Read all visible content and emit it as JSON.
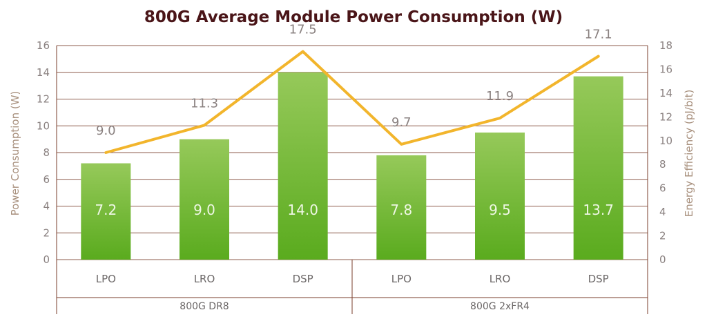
{
  "chart_data": {
    "type": "bar+line",
    "title": "800G Average Module Power Consumption (W)",
    "ylabel_left": "Power Consumption (W)",
    "ylabel_right": "Energy Efficiency (pJ/bit)",
    "ylim_left": [
      0,
      16
    ],
    "ylim_right": [
      0,
      18
    ],
    "yticks_left": [
      "0",
      "2",
      "4",
      "6",
      "8",
      "10",
      "12",
      "14",
      "16"
    ],
    "yticks_right": [
      "0",
      "2",
      "4",
      "6",
      "8",
      "10",
      "12",
      "14",
      "16",
      "18"
    ],
    "categories": [
      "LPO",
      "LRO",
      "DSP",
      "LPO",
      "LRO",
      "DSP"
    ],
    "groups": [
      {
        "name": "800G DR8",
        "span": 3
      },
      {
        "name": "800G 2xFR4",
        "span": 3
      }
    ],
    "series": [
      {
        "name": "Power Consumption (W)",
        "type": "bar",
        "axis": "left",
        "values": [
          7.2,
          9.0,
          14.0,
          7.8,
          9.5,
          13.7
        ],
        "labels": [
          "7.2",
          "9.0",
          "14.0",
          "7.8",
          "9.5",
          "13.7"
        ]
      },
      {
        "name": "Energy Efficiency (pJ/bit)",
        "type": "line",
        "axis": "right",
        "values": [
          9.0,
          11.3,
          17.5,
          9.7,
          11.9,
          17.1
        ],
        "labels": [
          "9.0",
          "11.3",
          "17.5",
          "9.7",
          "11.9",
          "17.1"
        ]
      }
    ],
    "colors": {
      "bar_top": "#96c95a",
      "bar_bottom": "#5aab1e",
      "line": "#f2b52c",
      "grid": "#7a3e2b",
      "title": "#4a1518"
    },
    "grid": true
  }
}
